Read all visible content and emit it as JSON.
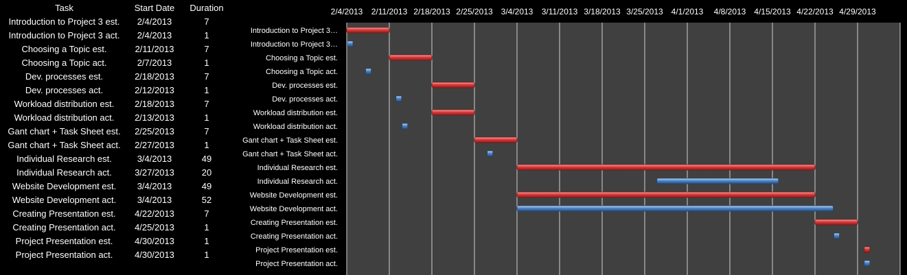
{
  "table": {
    "headers": {
      "task": "Task",
      "start": "Start Date",
      "duration": "Duration"
    },
    "rows": [
      {
        "task": "Introduction to Project 3 est.",
        "start": "2/4/2013",
        "duration": "7"
      },
      {
        "task": "Introduction to Project 3 act.",
        "start": "2/4/2013",
        "duration": "1"
      },
      {
        "task": "Choosing a Topic est.",
        "start": "2/11/2013",
        "duration": "7"
      },
      {
        "task": "Choosing a Topic act.",
        "start": "2/7/2013",
        "duration": "1"
      },
      {
        "task": "Dev. processes est.",
        "start": "2/18/2013",
        "duration": "7"
      },
      {
        "task": "Dev. processes act.",
        "start": "2/12/2013",
        "duration": "1"
      },
      {
        "task": "Workload distribution est.",
        "start": "2/18/2013",
        "duration": "7"
      },
      {
        "task": "Workload distribution act.",
        "start": "2/13/2013",
        "duration": "1"
      },
      {
        "task": "Gant chart + Task Sheet est.",
        "start": "2/25/2013",
        "duration": "7"
      },
      {
        "task": "Gant chart + Task Sheet act.",
        "start": "2/27/2013",
        "duration": "1"
      },
      {
        "task": "Individual Research est.",
        "start": "3/4/2013",
        "duration": "49"
      },
      {
        "task": "Individual Research act.",
        "start": "3/27/2013",
        "duration": "20"
      },
      {
        "task": "Website Development est.",
        "start": "3/4/2013",
        "duration": "49"
      },
      {
        "task": "Website Development act.",
        "start": "3/4/2013",
        "duration": "52"
      },
      {
        "task": "Creating Presentation est.",
        "start": "4/22/2013",
        "duration": "7"
      },
      {
        "task": "Creating Presentation act.",
        "start": "4/25/2013",
        "duration": "1"
      },
      {
        "task": "Project Presentation est.",
        "start": "4/30/2013",
        "duration": "1"
      },
      {
        "task": "Project Presentation act.",
        "start": "4/30/2013",
        "duration": "1"
      }
    ]
  },
  "chart_data": {
    "type": "bar",
    "orientation": "horizontal",
    "categories": [
      "Introduction to Project 3…",
      "Introduction to Project 3…",
      "Choosing a Topic est.",
      "Choosing a Topic act.",
      "Dev. processes est.",
      "Dev. processes act.",
      "Workload distribution est.",
      "Workload distribution act.",
      "Gant chart + Task Sheet est.",
      "Gant chart + Task Sheet act.",
      "Individual Research est.",
      "Individual Research act.",
      "Website Development est.",
      "Website Development act.",
      "Creating Presentation est.",
      "Creating Presentation act.",
      "Project Presentation est.",
      "Project Presentation act."
    ],
    "starts": [
      "2013-02-04",
      "2013-02-04",
      "2013-02-11",
      "2013-02-07",
      "2013-02-18",
      "2013-02-12",
      "2013-02-18",
      "2013-02-13",
      "2013-02-25",
      "2013-02-27",
      "2013-03-04",
      "2013-03-27",
      "2013-03-04",
      "2013-03-04",
      "2013-04-22",
      "2013-04-25",
      "2013-04-30",
      "2013-04-30"
    ],
    "durations": [
      7,
      1,
      7,
      1,
      7,
      1,
      7,
      1,
      7,
      1,
      49,
      20,
      49,
      52,
      7,
      1,
      1,
      1
    ],
    "x_ticks": [
      "2/4/2013",
      "2/11/2013",
      "2/18/2013",
      "2/25/2013",
      "3/4/2013",
      "3/11/2013",
      "3/18/2013",
      "3/25/2013",
      "4/1/2013",
      "4/8/2013",
      "4/15/2013",
      "4/22/2013",
      "4/29/2013"
    ],
    "x_range": [
      "2013-02-04",
      "2013-05-06"
    ],
    "grid": true,
    "colors": {
      "est": "#d9393a",
      "act": "#4f86c6",
      "plot_bg": "#404040",
      "grid": "#d0d0d0"
    }
  }
}
